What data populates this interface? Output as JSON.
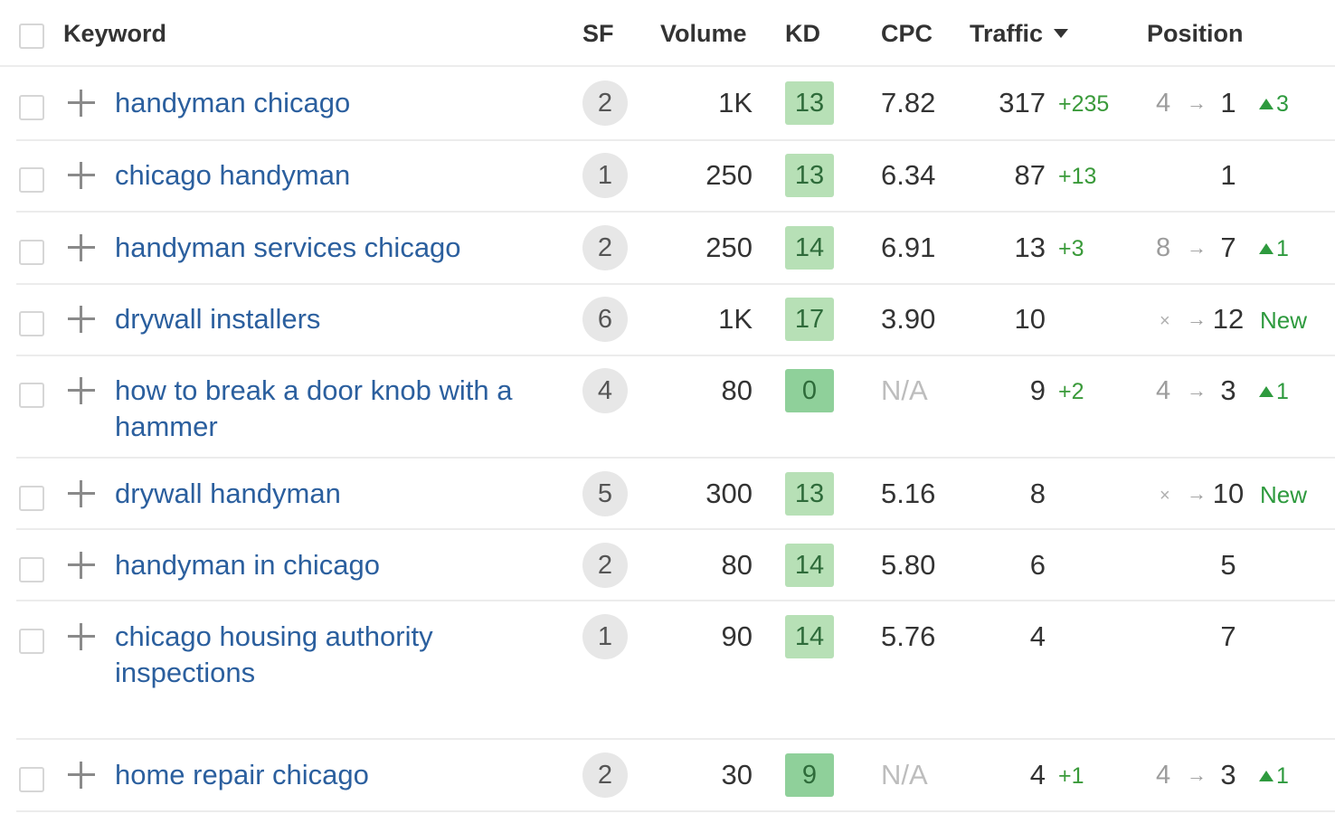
{
  "headers": {
    "keyword": "Keyword",
    "sf": "SF",
    "volume": "Volume",
    "kd": "KD",
    "cpc": "CPC",
    "traffic": "Traffic",
    "position": "Position"
  },
  "colors": {
    "link": "#2b5f9e",
    "positive": "#2e9a3e",
    "kd_light": "#b7e0b6",
    "kd_medium": "#8fd09a"
  },
  "rows": [
    {
      "keyword": "handyman chicago",
      "sf": "2",
      "volume": "1K",
      "kd": "13",
      "cpc": "7.82",
      "traffic": "317",
      "traffic_delta": "+235",
      "pos_from": "4",
      "arrow": "→",
      "pos_to": "1",
      "pos_change": "3"
    },
    {
      "keyword": "chicago handyman",
      "sf": "1",
      "volume": "250",
      "kd": "13",
      "cpc": "6.34",
      "traffic": "87",
      "traffic_delta": "+13",
      "pos_to": "1"
    },
    {
      "keyword": "handyman services chicago",
      "sf": "2",
      "volume": "250",
      "kd": "14",
      "cpc": "6.91",
      "traffic": "13",
      "traffic_delta": "+3",
      "pos_from": "8",
      "arrow": "→",
      "pos_to": "7",
      "pos_change": "1"
    },
    {
      "keyword": "drywall installers",
      "sf": "6",
      "volume": "1K",
      "kd": "17",
      "cpc": "3.90",
      "traffic": "10",
      "pos_x": "×",
      "arrow": "→",
      "pos_to": "12",
      "pos_new": "New"
    },
    {
      "keyword": "how to break a door knob with a hammer",
      "sf": "4",
      "volume": "80",
      "kd": "0",
      "cpc": "N/A",
      "traffic": "9",
      "traffic_delta": "+2",
      "pos_from": "4",
      "arrow": "→",
      "pos_to": "3",
      "pos_change": "1"
    },
    {
      "keyword": "drywall handyman",
      "sf": "5",
      "volume": "300",
      "kd": "13",
      "cpc": "5.16",
      "traffic": "8",
      "pos_x": "×",
      "arrow": "→",
      "pos_to": "10",
      "pos_new": "New"
    },
    {
      "keyword": "handyman in chicago",
      "sf": "2",
      "volume": "80",
      "kd": "14",
      "cpc": "5.80",
      "traffic": "6",
      "pos_to": "5"
    },
    {
      "keyword": "chicago housing authority inspections",
      "sf": "1",
      "volume": "90",
      "kd": "14",
      "cpc": "5.76",
      "traffic": "4",
      "pos_to": "7"
    },
    {
      "keyword": "home repair chicago",
      "sf": "2",
      "volume": "30",
      "kd": "9",
      "cpc": "N/A",
      "traffic": "4",
      "traffic_delta": "+1",
      "pos_from": "4",
      "arrow": "→",
      "pos_to": "3",
      "pos_change": "1"
    }
  ]
}
